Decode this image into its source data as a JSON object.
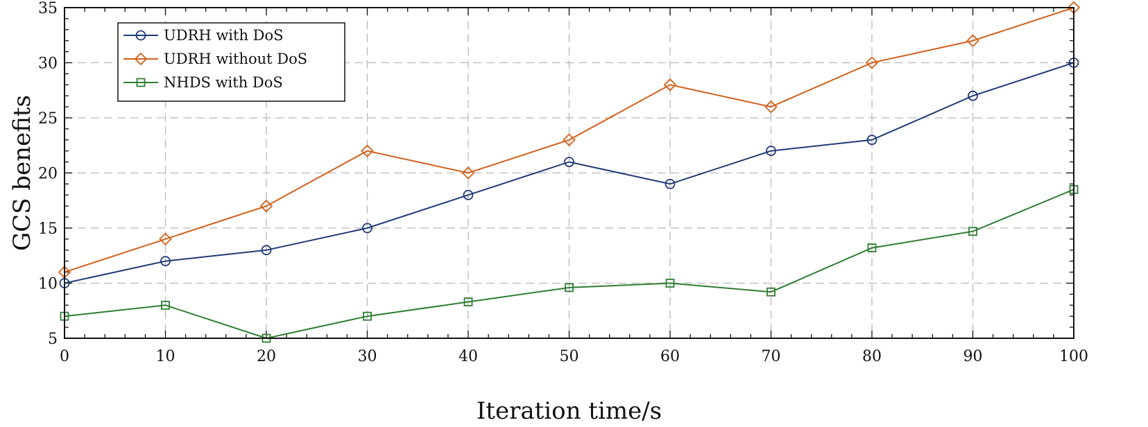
{
  "chart_data": {
    "type": "line",
    "title": "",
    "xlabel": "Iteration time/s",
    "ylabel": "GCS benefits",
    "xlim": [
      0,
      100
    ],
    "ylim": [
      5,
      35
    ],
    "xticks": [
      0,
      10,
      20,
      30,
      40,
      50,
      60,
      70,
      80,
      90,
      100
    ],
    "yticks": [
      5,
      10,
      15,
      20,
      25,
      30,
      35
    ],
    "grid": true,
    "legend_position": "top-left",
    "x": [
      0,
      10,
      20,
      30,
      40,
      50,
      60,
      70,
      80,
      90,
      100
    ],
    "series": [
      {
        "name": "UDRH with DoS",
        "color": "#1f3a77",
        "marker": "circle",
        "values": [
          10,
          12,
          13,
          15,
          18,
          21,
          19,
          22,
          23,
          27,
          30
        ]
      },
      {
        "name": "UDRH without DoS",
        "color": "#d2601a",
        "marker": "diamond",
        "values": [
          11,
          14,
          17,
          22,
          20,
          23,
          28,
          26,
          30,
          32,
          35
        ]
      },
      {
        "name": "NHDS with DoS",
        "color": "#2e7d32",
        "marker": "square",
        "values": [
          7,
          8,
          5,
          7,
          8.3,
          9.6,
          10,
          9.2,
          13.2,
          14.7,
          18.5
        ]
      }
    ]
  }
}
